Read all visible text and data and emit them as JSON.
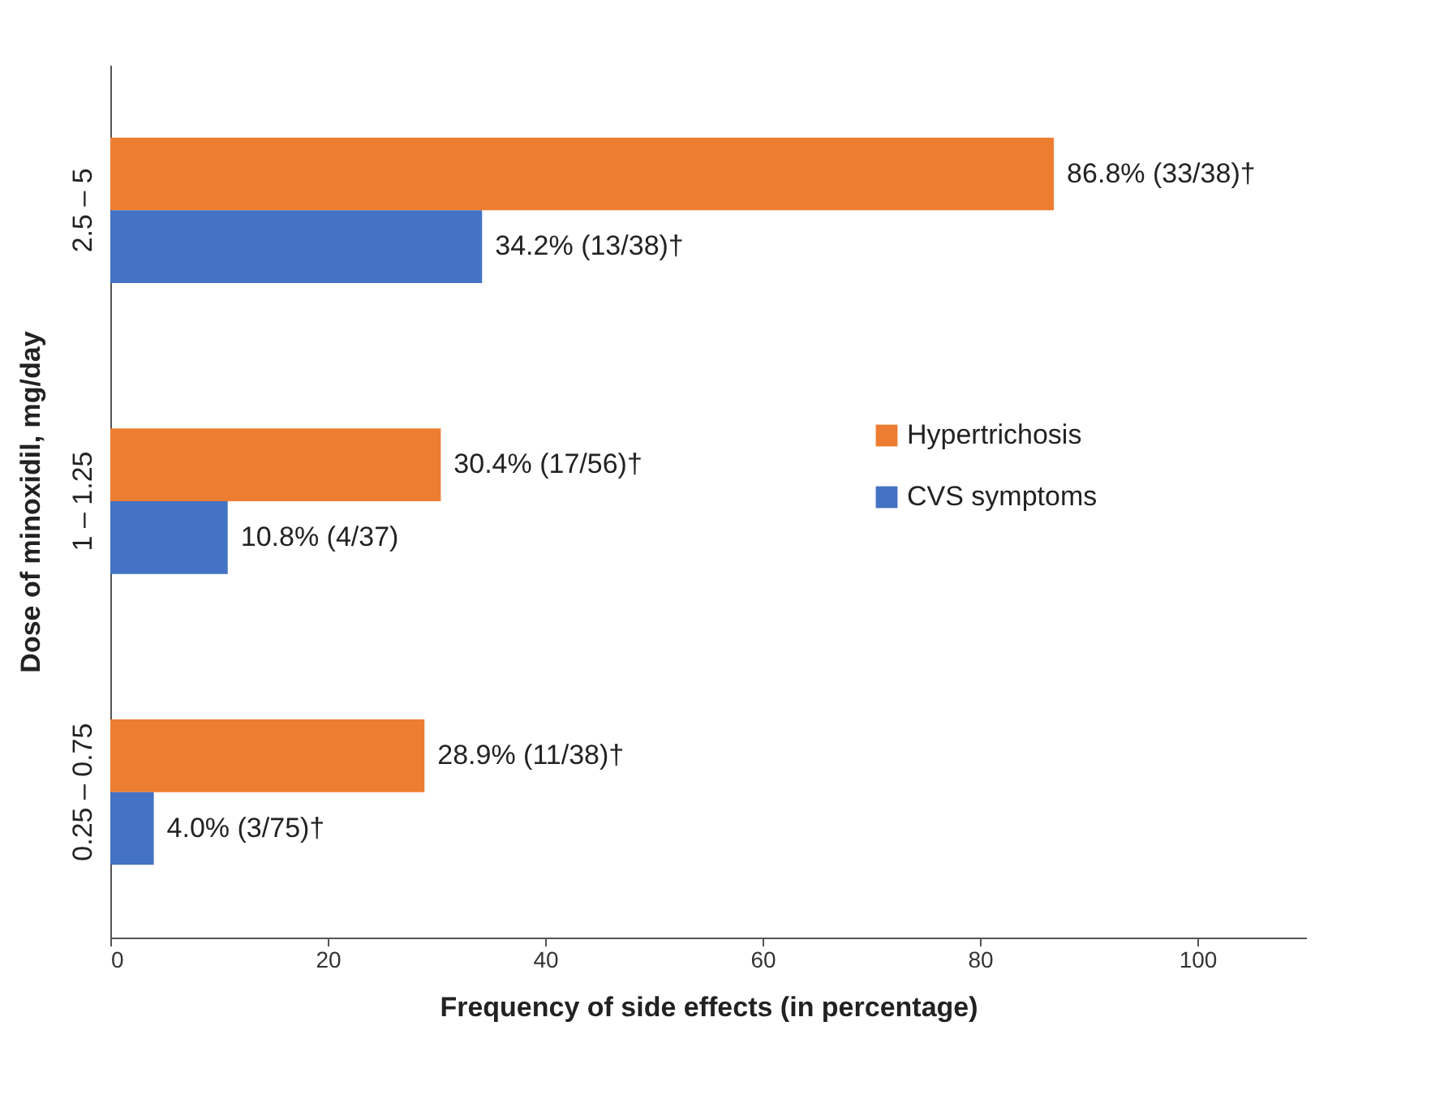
{
  "chart_data": {
    "type": "bar",
    "orientation": "horizontal",
    "xlabel": "Frequency of side effects (in percentage)",
    "ylabel": "Dose of minoxidil, mg/day",
    "categories": [
      "2.5 – 5",
      "1 – 1.25",
      "0.25 – 0.75"
    ],
    "series": [
      {
        "name": "Hypertrichosis",
        "color": "#ed7d31",
        "values": [
          86.8,
          30.4,
          28.9
        ],
        "value_labels": [
          "86.8% (33/38)†",
          "30.4% (17/56)†",
          "28.9% (11/38)†"
        ]
      },
      {
        "name": "CVS symptoms",
        "color": "#4472c4",
        "values": [
          34.2,
          10.8,
          4.0
        ],
        "value_labels": [
          "34.2% (13/38)†",
          "10.8% (4/37)",
          "4.0% (3/75)†"
        ]
      }
    ],
    "xlim": [
      0,
      110
    ],
    "xticks": [
      0,
      20,
      40,
      60,
      80,
      100
    ],
    "grid": false,
    "legend": "right"
  }
}
